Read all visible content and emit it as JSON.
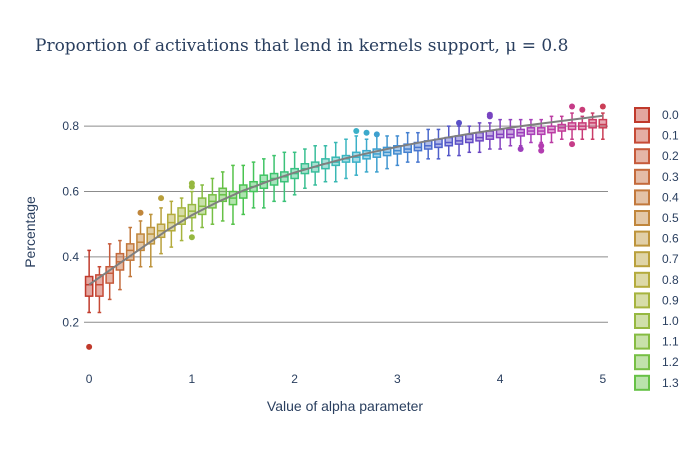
{
  "chart_data": {
    "type": "box",
    "title": "Proportion of activations that lend in kernels support, μ = 0.8",
    "xlabel": "Value of alpha parameter",
    "ylabel": "Percentage",
    "xlim": [
      -0.05,
      5.05
    ],
    "ylim": [
      0.1,
      0.88
    ],
    "x_ticks": [
      0,
      1,
      2,
      3,
      4,
      5
    ],
    "x_tick_labels": [
      "0",
      "1",
      "2",
      "3",
      "4",
      "5"
    ],
    "y_ticks": [
      0.2,
      0.4,
      0.6,
      0.8
    ],
    "y_tick_labels": [
      "0.2",
      "0.4",
      "0.6",
      "0.8"
    ],
    "grid": "horizontal",
    "legend_placement": "right",
    "legend_entries": [
      "0.0",
      "0.1",
      "0.2",
      "0.3",
      "0.4",
      "0.5",
      "0.6",
      "0.7",
      "0.8",
      "0.9",
      "1.0",
      "1.1",
      "1.2",
      "1.3"
    ],
    "trend_line": {
      "name": "",
      "color": "#7f7f7f",
      "x": [
        0,
        0.25,
        0.5,
        0.75,
        1,
        1.25,
        1.5,
        1.75,
        2,
        2.25,
        2.5,
        2.75,
        3,
        3.25,
        3.5,
        3.75,
        4,
        4.25,
        4.5,
        4.75,
        5
      ],
      "y": [
        0.315,
        0.37,
        0.425,
        0.48,
        0.528,
        0.568,
        0.603,
        0.632,
        0.658,
        0.681,
        0.702,
        0.72,
        0.737,
        0.752,
        0.766,
        0.779,
        0.791,
        0.802,
        0.812,
        0.822,
        0.832
      ]
    },
    "series": [
      {
        "name": "0.0",
        "x": 0.0,
        "q1": 0.28,
        "median": 0.315,
        "q3": 0.34,
        "lower_fence": 0.23,
        "upper_fence": 0.42,
        "outliers": [
          0.125
        ],
        "color": "#c0392b"
      },
      {
        "name": "0.1",
        "x": 0.1,
        "q1": 0.28,
        "median": 0.315,
        "q3": 0.345,
        "lower_fence": 0.23,
        "upper_fence": 0.37,
        "outliers": [],
        "color": "#c64a36"
      },
      {
        "name": "0.2",
        "x": 0.2,
        "q1": 0.32,
        "median": 0.35,
        "q3": 0.37,
        "lower_fence": 0.27,
        "upper_fence": 0.44,
        "outliers": [],
        "color": "#c65a3b"
      },
      {
        "name": "0.3",
        "x": 0.3,
        "q1": 0.36,
        "median": 0.385,
        "q3": 0.41,
        "lower_fence": 0.3,
        "upper_fence": 0.45,
        "outliers": [],
        "color": "#c46a3c"
      },
      {
        "name": "0.4",
        "x": 0.4,
        "q1": 0.39,
        "median": 0.42,
        "q3": 0.44,
        "lower_fence": 0.34,
        "upper_fence": 0.49,
        "outliers": [],
        "color": "#c2783c"
      },
      {
        "name": "0.5",
        "x": 0.5,
        "q1": 0.42,
        "median": 0.445,
        "q3": 0.47,
        "lower_fence": 0.37,
        "upper_fence": 0.51,
        "outliers": [
          0.535
        ],
        "color": "#c0863c"
      },
      {
        "name": "0.6",
        "x": 0.6,
        "q1": 0.44,
        "median": 0.47,
        "q3": 0.49,
        "lower_fence": 0.37,
        "upper_fence": 0.53,
        "outliers": [],
        "color": "#bd943c"
      },
      {
        "name": "0.7",
        "x": 0.7,
        "q1": 0.46,
        "median": 0.48,
        "q3": 0.5,
        "lower_fence": 0.41,
        "upper_fence": 0.55,
        "outliers": [
          0.58
        ],
        "color": "#b9a03c"
      },
      {
        "name": "0.8",
        "x": 0.8,
        "q1": 0.48,
        "median": 0.505,
        "q3": 0.53,
        "lower_fence": 0.43,
        "upper_fence": 0.57,
        "outliers": [],
        "color": "#b4ab3c"
      },
      {
        "name": "0.9",
        "x": 0.9,
        "q1": 0.5,
        "median": 0.525,
        "q3": 0.55,
        "lower_fence": 0.45,
        "upper_fence": 0.58,
        "outliers": [],
        "color": "#a6b43e"
      },
      {
        "name": "1.0",
        "x": 1.0,
        "q1": 0.52,
        "median": 0.54,
        "q3": 0.56,
        "lower_fence": 0.48,
        "upper_fence": 0.6,
        "outliers": [
          0.615,
          0.625,
          0.46
        ],
        "color": "#96b840"
      },
      {
        "name": "1.1",
        "x": 1.1,
        "q1": 0.53,
        "median": 0.555,
        "q3": 0.58,
        "lower_fence": 0.49,
        "upper_fence": 0.62,
        "outliers": [],
        "color": "#86bc42"
      },
      {
        "name": "1.2",
        "x": 1.2,
        "q1": 0.55,
        "median": 0.57,
        "q3": 0.59,
        "lower_fence": 0.5,
        "upper_fence": 0.64,
        "outliers": [],
        "color": "#76bf44"
      },
      {
        "name": "1.3",
        "x": 1.3,
        "q1": 0.57,
        "median": 0.59,
        "q3": 0.61,
        "lower_fence": 0.51,
        "upper_fence": 0.66,
        "outliers": [],
        "color": "#66c146"
      },
      {
        "name": "",
        "x": 1.4,
        "q1": 0.56,
        "median": 0.58,
        "q3": 0.6,
        "lower_fence": 0.5,
        "upper_fence": 0.68,
        "outliers": [],
        "color": "#56c34a"
      },
      {
        "name": "",
        "x": 1.5,
        "q1": 0.58,
        "median": 0.6,
        "q3": 0.62,
        "lower_fence": 0.53,
        "upper_fence": 0.68,
        "outliers": [],
        "color": "#4ac450"
      },
      {
        "name": "",
        "x": 1.6,
        "q1": 0.6,
        "median": 0.615,
        "q3": 0.63,
        "lower_fence": 0.55,
        "upper_fence": 0.69,
        "outliers": [],
        "color": "#44c45a"
      },
      {
        "name": "",
        "x": 1.7,
        "q1": 0.61,
        "median": 0.63,
        "q3": 0.65,
        "lower_fence": 0.55,
        "upper_fence": 0.7,
        "outliers": [],
        "color": "#40c464"
      },
      {
        "name": "",
        "x": 1.8,
        "q1": 0.62,
        "median": 0.64,
        "q3": 0.655,
        "lower_fence": 0.57,
        "upper_fence": 0.71,
        "outliers": [],
        "color": "#3dc36e"
      },
      {
        "name": "",
        "x": 1.9,
        "q1": 0.63,
        "median": 0.645,
        "q3": 0.66,
        "lower_fence": 0.57,
        "upper_fence": 0.72,
        "outliers": [],
        "color": "#3bc279"
      },
      {
        "name": "",
        "x": 2.0,
        "q1": 0.64,
        "median": 0.655,
        "q3": 0.67,
        "lower_fence": 0.59,
        "upper_fence": 0.72,
        "outliers": [],
        "color": "#3ac184"
      },
      {
        "name": "",
        "x": 2.1,
        "q1": 0.655,
        "median": 0.67,
        "q3": 0.685,
        "lower_fence": 0.61,
        "upper_fence": 0.73,
        "outliers": [],
        "color": "#39bf90"
      },
      {
        "name": "",
        "x": 2.2,
        "q1": 0.66,
        "median": 0.675,
        "q3": 0.69,
        "lower_fence": 0.62,
        "upper_fence": 0.74,
        "outliers": [],
        "color": "#39bd9c"
      },
      {
        "name": "",
        "x": 2.3,
        "q1": 0.67,
        "median": 0.685,
        "q3": 0.7,
        "lower_fence": 0.63,
        "upper_fence": 0.74,
        "outliers": [],
        "color": "#39bba8"
      },
      {
        "name": "",
        "x": 2.4,
        "q1": 0.68,
        "median": 0.69,
        "q3": 0.705,
        "lower_fence": 0.63,
        "upper_fence": 0.75,
        "outliers": [],
        "color": "#39b8b4"
      },
      {
        "name": "",
        "x": 2.5,
        "q1": 0.69,
        "median": 0.7,
        "q3": 0.71,
        "lower_fence": 0.64,
        "upper_fence": 0.76,
        "outliers": [],
        "color": "#3ab5c0"
      },
      {
        "name": "",
        "x": 2.6,
        "q1": 0.69,
        "median": 0.705,
        "q3": 0.72,
        "lower_fence": 0.65,
        "upper_fence": 0.77,
        "outliers": [
          0.785
        ],
        "color": "#3bb0c8"
      },
      {
        "name": "",
        "x": 2.7,
        "q1": 0.7,
        "median": 0.71,
        "q3": 0.725,
        "lower_fence": 0.66,
        "upper_fence": 0.76,
        "outliers": [
          0.78
        ],
        "color": "#3ca9cc"
      },
      {
        "name": "",
        "x": 2.8,
        "q1": 0.705,
        "median": 0.715,
        "q3": 0.73,
        "lower_fence": 0.66,
        "upper_fence": 0.77,
        "outliers": [
          0.775
        ],
        "color": "#3ea0cf"
      },
      {
        "name": "",
        "x": 2.9,
        "q1": 0.71,
        "median": 0.72,
        "q3": 0.735,
        "lower_fence": 0.67,
        "upper_fence": 0.77,
        "outliers": [],
        "color": "#4096d0"
      },
      {
        "name": "",
        "x": 3.0,
        "q1": 0.715,
        "median": 0.725,
        "q3": 0.74,
        "lower_fence": 0.68,
        "upper_fence": 0.77,
        "outliers": [],
        "color": "#428cd1"
      },
      {
        "name": "",
        "x": 3.1,
        "q1": 0.72,
        "median": 0.73,
        "q3": 0.745,
        "lower_fence": 0.69,
        "upper_fence": 0.78,
        "outliers": [],
        "color": "#4581d0"
      },
      {
        "name": "",
        "x": 3.2,
        "q1": 0.725,
        "median": 0.735,
        "q3": 0.75,
        "lower_fence": 0.69,
        "upper_fence": 0.78,
        "outliers": [],
        "color": "#4876cf"
      },
      {
        "name": "",
        "x": 3.3,
        "q1": 0.73,
        "median": 0.74,
        "q3": 0.755,
        "lower_fence": 0.7,
        "upper_fence": 0.79,
        "outliers": [],
        "color": "#4b6bcd"
      },
      {
        "name": "",
        "x": 3.4,
        "q1": 0.735,
        "median": 0.745,
        "q3": 0.76,
        "lower_fence": 0.7,
        "upper_fence": 0.79,
        "outliers": [],
        "color": "#4e60cb"
      },
      {
        "name": "",
        "x": 3.5,
        "q1": 0.74,
        "median": 0.75,
        "q3": 0.765,
        "lower_fence": 0.71,
        "upper_fence": 0.8,
        "outliers": [],
        "color": "#5357c9"
      },
      {
        "name": "",
        "x": 3.6,
        "q1": 0.745,
        "median": 0.755,
        "q3": 0.77,
        "lower_fence": 0.71,
        "upper_fence": 0.8,
        "outliers": [
          0.81
        ],
        "color": "#5a50c7"
      },
      {
        "name": "",
        "x": 3.7,
        "q1": 0.75,
        "median": 0.76,
        "q3": 0.775,
        "lower_fence": 0.72,
        "upper_fence": 0.8,
        "outliers": [],
        "color": "#634bc5"
      },
      {
        "name": "",
        "x": 3.8,
        "q1": 0.755,
        "median": 0.765,
        "q3": 0.78,
        "lower_fence": 0.72,
        "upper_fence": 0.81,
        "outliers": [],
        "color": "#6d47c3"
      },
      {
        "name": "",
        "x": 3.9,
        "q1": 0.76,
        "median": 0.77,
        "q3": 0.785,
        "lower_fence": 0.73,
        "upper_fence": 0.81,
        "outliers": [
          0.83,
          0.835
        ],
        "color": "#7844c1"
      },
      {
        "name": "",
        "x": 4.0,
        "q1": 0.765,
        "median": 0.775,
        "q3": 0.79,
        "lower_fence": 0.73,
        "upper_fence": 0.82,
        "outliers": [],
        "color": "#8442bf"
      },
      {
        "name": "",
        "x": 4.1,
        "q1": 0.765,
        "median": 0.775,
        "q3": 0.79,
        "lower_fence": 0.74,
        "upper_fence": 0.82,
        "outliers": [],
        "color": "#9040bd"
      },
      {
        "name": "",
        "x": 4.2,
        "q1": 0.77,
        "median": 0.78,
        "q3": 0.79,
        "lower_fence": 0.74,
        "upper_fence": 0.82,
        "outliers": [
          0.73
        ],
        "color": "#9c3fbb"
      },
      {
        "name": "",
        "x": 4.3,
        "q1": 0.775,
        "median": 0.785,
        "q3": 0.795,
        "lower_fence": 0.75,
        "upper_fence": 0.82,
        "outliers": [],
        "color": "#a83eb8"
      },
      {
        "name": "",
        "x": 4.4,
        "q1": 0.775,
        "median": 0.785,
        "q3": 0.795,
        "lower_fence": 0.75,
        "upper_fence": 0.82,
        "outliers": [
          0.74,
          0.725
        ],
        "color": "#b33db0"
      },
      {
        "name": "",
        "x": 4.5,
        "q1": 0.78,
        "median": 0.79,
        "q3": 0.8,
        "lower_fence": 0.75,
        "upper_fence": 0.83,
        "outliers": [],
        "color": "#bb3ca4"
      },
      {
        "name": "",
        "x": 4.6,
        "q1": 0.785,
        "median": 0.795,
        "q3": 0.805,
        "lower_fence": 0.76,
        "upper_fence": 0.83,
        "outliers": [],
        "color": "#c13c97"
      },
      {
        "name": "",
        "x": 4.7,
        "q1": 0.79,
        "median": 0.8,
        "q3": 0.81,
        "lower_fence": 0.76,
        "upper_fence": 0.84,
        "outliers": [
          0.86,
          0.745
        ],
        "color": "#c53c88"
      },
      {
        "name": "",
        "x": 4.8,
        "q1": 0.79,
        "median": 0.8,
        "q3": 0.81,
        "lower_fence": 0.76,
        "upper_fence": 0.83,
        "outliers": [
          0.85
        ],
        "color": "#c83c78"
      },
      {
        "name": "",
        "x": 4.9,
        "q1": 0.795,
        "median": 0.81,
        "q3": 0.82,
        "lower_fence": 0.76,
        "upper_fence": 0.84,
        "outliers": [],
        "color": "#ca3d68"
      },
      {
        "name": "",
        "x": 5.0,
        "q1": 0.795,
        "median": 0.805,
        "q3": 0.82,
        "lower_fence": 0.76,
        "upper_fence": 0.84,
        "outliers": [
          0.86
        ],
        "color": "#cb3e56"
      }
    ]
  }
}
